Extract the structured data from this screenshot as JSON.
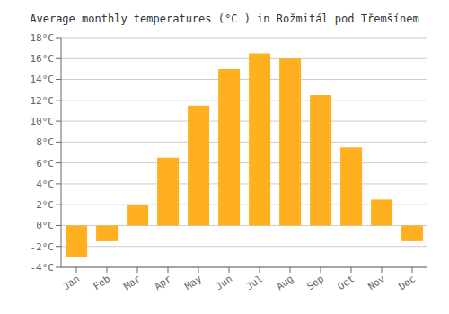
{
  "chart_data": {
    "type": "bar",
    "title": "Average monthly temperatures (°C ) in Rožmitál pod Třemšínem",
    "categories": [
      "Jan",
      "Feb",
      "Mar",
      "Apr",
      "May",
      "Jun",
      "Jul",
      "Aug",
      "Sep",
      "Oct",
      "Nov",
      "Dec"
    ],
    "values": [
      -3.0,
      -1.5,
      2.0,
      6.5,
      11.5,
      15.0,
      16.5,
      16.0,
      12.5,
      7.5,
      2.5,
      -1.5
    ],
    "color": "#FFB020",
    "ylim": [
      -4,
      18
    ],
    "yticks": [
      {
        "value": -4,
        "label": "-4°C"
      },
      {
        "value": -2,
        "label": "-2°C"
      },
      {
        "value": 0,
        "label": "0°C"
      },
      {
        "value": 2,
        "label": "2°C"
      },
      {
        "value": 4,
        "label": "4°C"
      },
      {
        "value": 6,
        "label": "6°C"
      },
      {
        "value": 8,
        "label": "8°C"
      },
      {
        "value": 10,
        "label": "10°C"
      },
      {
        "value": 12,
        "label": "12°C"
      },
      {
        "value": 14,
        "label": "14°C"
      },
      {
        "value": 16,
        "label": "16°C"
      },
      {
        "value": 18,
        "label": "18°C"
      }
    ],
    "grid": true
  }
}
